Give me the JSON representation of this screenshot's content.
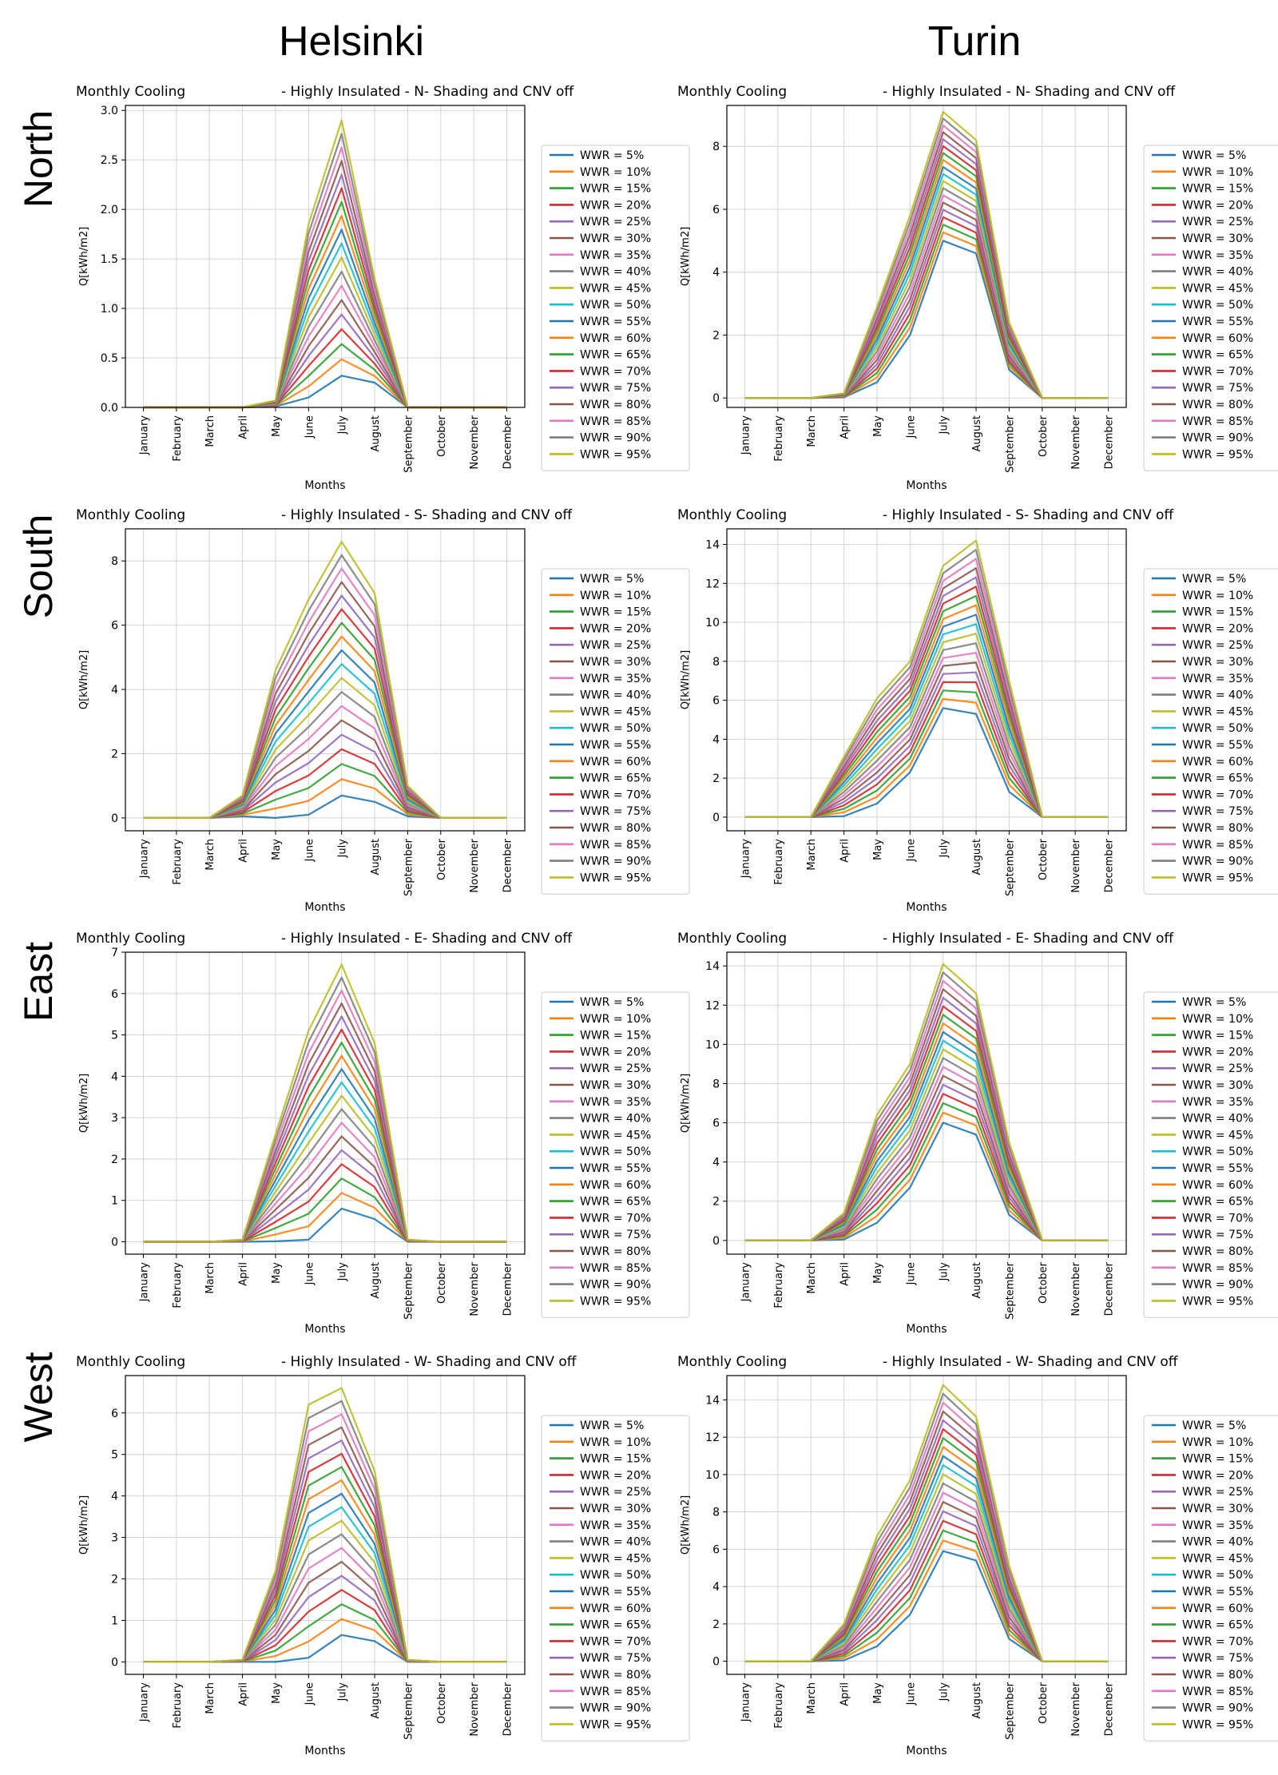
{
  "cities": [
    "Helsinki",
    "Turin"
  ],
  "orientations": [
    "North",
    "South",
    "East",
    "West"
  ],
  "months": [
    "January",
    "February",
    "March",
    "April",
    "May",
    "June",
    "July",
    "August",
    "September",
    "October",
    "November",
    "December"
  ],
  "legend_entries": [
    "WWR = 5%",
    "WWR = 10%",
    "WWR = 15%",
    "WWR = 20%",
    "WWR = 25%",
    "WWR = 30%",
    "WWR = 35%",
    "WWR = 40%",
    "WWR = 45%",
    "WWR = 50%",
    "WWR = 55%",
    "WWR = 60%",
    "WWR = 65%",
    "WWR = 70%",
    "WWR = 75%",
    "WWR = 80%",
    "WWR = 85%",
    "WWR = 90%",
    "WWR = 95%"
  ],
  "series_colors": [
    "#1f77b4",
    "#ff7f0e",
    "#2ca02c",
    "#d62728",
    "#9467bd",
    "#8c564b",
    "#e377c2",
    "#7f7f7f",
    "#bcbd22",
    "#17becf",
    "#1f77b4",
    "#ff7f0e",
    "#2ca02c",
    "#d62728",
    "#9467bd",
    "#8c564b",
    "#e377c2",
    "#7f7f7f",
    "#bcbd22"
  ],
  "chart_data": [
    {
      "type": "line",
      "city": "Helsinki",
      "orientation": "North",
      "title_left": "Monthly Cooling",
      "title_right": "- Highly Insulated - N- Shading and CNV off",
      "xlabel": "Months",
      "ylabel": "Q[kWh/m2]",
      "ylim": [
        0,
        3.05
      ],
      "yticks": [
        "0.0",
        "0.5",
        "1.0",
        "1.5",
        "2.0",
        "2.5",
        "3.0"
      ],
      "ytick_values": [
        0,
        0.5,
        1,
        1.5,
        2,
        2.5,
        3
      ],
      "grid": true,
      "legend": "right",
      "series_profile": {
        "May": [
          0.01,
          0.07
        ],
        "June": [
          0.1,
          1.85
        ],
        "July": [
          0.32,
          2.9
        ],
        "August": [
          0.25,
          1.3
        ]
      }
    },
    {
      "type": "line",
      "city": "Turin",
      "orientation": "North",
      "title_left": "Monthly Cooling",
      "title_right": "- Highly Insulated - N- Shading and CNV off",
      "xlabel": "Months",
      "ylabel": "Q[kWh/m2]",
      "ylim": [
        -0.3,
        9.3
      ],
      "yticks": [
        "0",
        "2",
        "4",
        "6",
        "8"
      ],
      "ytick_values": [
        0,
        2,
        4,
        6,
        8
      ],
      "grid": true,
      "legend": "right",
      "series_profile": {
        "April": [
          0.02,
          0.15
        ],
        "May": [
          0.5,
          2.9
        ],
        "June": [
          2.0,
          5.8
        ],
        "July": [
          5.0,
          9.1
        ],
        "August": [
          4.6,
          8.2
        ],
        "September": [
          0.9,
          2.4
        ]
      }
    },
    {
      "type": "line",
      "city": "Helsinki",
      "orientation": "South",
      "title_left": "Monthly Cooling",
      "title_right": "- Highly Insulated - S- Shading and CNV off",
      "xlabel": "Months",
      "ylabel": "Q[kWh/m2]",
      "ylim": [
        -0.4,
        9.0
      ],
      "yticks": [
        "0",
        "2",
        "4",
        "6",
        "8"
      ],
      "ytick_values": [
        0,
        2,
        4,
        6,
        8
      ],
      "grid": true,
      "legend": "right",
      "series_profile": {
        "April": [
          0.05,
          0.7
        ],
        "May": [
          0.0,
          4.6
        ],
        "June": [
          0.1,
          6.8
        ],
        "July": [
          0.7,
          8.6
        ],
        "August": [
          0.5,
          7.0
        ],
        "September": [
          0.05,
          1.0
        ]
      }
    },
    {
      "type": "line",
      "city": "Turin",
      "orientation": "South",
      "title_left": "Monthly Cooling",
      "title_right": "- Highly Insulated - S- Shading and CNV off",
      "xlabel": "Months",
      "ylabel": "Q[kWh/m2]",
      "ylim": [
        -0.7,
        14.8
      ],
      "yticks": [
        "0",
        "2",
        "4",
        "6",
        "8",
        "10",
        "12",
        "14"
      ],
      "ytick_values": [
        0,
        2,
        4,
        6,
        8,
        10,
        12,
        14
      ],
      "grid": true,
      "legend": "right",
      "series_profile": {
        "April": [
          0.05,
          3.1
        ],
        "May": [
          0.7,
          6.1
        ],
        "June": [
          2.3,
          8.0
        ],
        "July": [
          5.6,
          12.9
        ],
        "August": [
          5.3,
          14.2
        ],
        "September": [
          1.3,
          7.0
        ]
      }
    },
    {
      "type": "line",
      "city": "Helsinki",
      "orientation": "East",
      "title_left": "Monthly Cooling",
      "title_right": "- Highly Insulated - E- Shading and CNV off",
      "xlabel": "Months",
      "ylabel": "Q[kWh/m2]",
      "ylim": [
        -0.3,
        7.0
      ],
      "yticks": [
        "0",
        "1",
        "2",
        "3",
        "4",
        "5",
        "6",
        "7"
      ],
      "ytick_values": [
        0,
        1,
        2,
        3,
        4,
        5,
        6,
        7
      ],
      "grid": true,
      "legend": "right",
      "series_profile": {
        "April": [
          0.0,
          0.05
        ],
        "May": [
          0.01,
          2.6
        ],
        "June": [
          0.05,
          5.1
        ],
        "July": [
          0.8,
          6.7
        ],
        "August": [
          0.55,
          4.8
        ],
        "September": [
          0.0,
          0.05
        ]
      }
    },
    {
      "type": "line",
      "city": "Turin",
      "orientation": "East",
      "title_left": "Monthly Cooling",
      "title_right": "- Highly Insulated - E- Shading and CNV off",
      "xlabel": "Months",
      "ylabel": "Q[kWh/m2]",
      "ylim": [
        -0.7,
        14.7
      ],
      "yticks": [
        "0",
        "2",
        "4",
        "6",
        "8",
        "10",
        "12",
        "14"
      ],
      "ytick_values": [
        0,
        2,
        4,
        6,
        8,
        10,
        12,
        14
      ],
      "grid": true,
      "legend": "right",
      "series_profile": {
        "April": [
          0.05,
          1.4
        ],
        "May": [
          0.9,
          6.4
        ],
        "June": [
          2.7,
          9.0
        ],
        "July": [
          6.0,
          14.1
        ],
        "August": [
          5.4,
          12.6
        ],
        "September": [
          1.3,
          5.0
        ]
      }
    },
    {
      "type": "line",
      "city": "Helsinki",
      "orientation": "West",
      "title_left": "Monthly Cooling",
      "title_right": "- Highly Insulated - W- Shading and CNV off",
      "xlabel": "Months",
      "ylabel": "Q[kWh/m2]",
      "ylim": [
        -0.3,
        6.9
      ],
      "yticks": [
        "0",
        "1",
        "2",
        "3",
        "4",
        "5",
        "6"
      ],
      "ytick_values": [
        0,
        1,
        2,
        3,
        4,
        5,
        6
      ],
      "grid": true,
      "legend": "right",
      "series_profile": {
        "April": [
          0.0,
          0.05
        ],
        "May": [
          0.0,
          2.2
        ],
        "June": [
          0.1,
          6.2
        ],
        "July": [
          0.65,
          6.6
        ],
        "August": [
          0.5,
          4.6
        ],
        "September": [
          0.0,
          0.05
        ]
      }
    },
    {
      "type": "line",
      "city": "Turin",
      "orientation": "West",
      "title_left": "Monthly Cooling",
      "title_right": "- Highly Insulated - W- Shading and CNV off",
      "xlabel": "Months",
      "ylabel": "Q[kWh/m2]",
      "ylim": [
        -0.7,
        15.3
      ],
      "yticks": [
        "0",
        "2",
        "4",
        "6",
        "8",
        "10",
        "12",
        "14"
      ],
      "ytick_values": [
        0,
        2,
        4,
        6,
        8,
        10,
        12,
        14
      ],
      "grid": true,
      "legend": "right",
      "series_profile": {
        "April": [
          0.05,
          2.0
        ],
        "May": [
          0.8,
          6.7
        ],
        "June": [
          2.5,
          9.7
        ],
        "July": [
          5.9,
          14.8
        ],
        "August": [
          5.4,
          13.1
        ],
        "September": [
          1.2,
          5.1
        ]
      }
    }
  ]
}
